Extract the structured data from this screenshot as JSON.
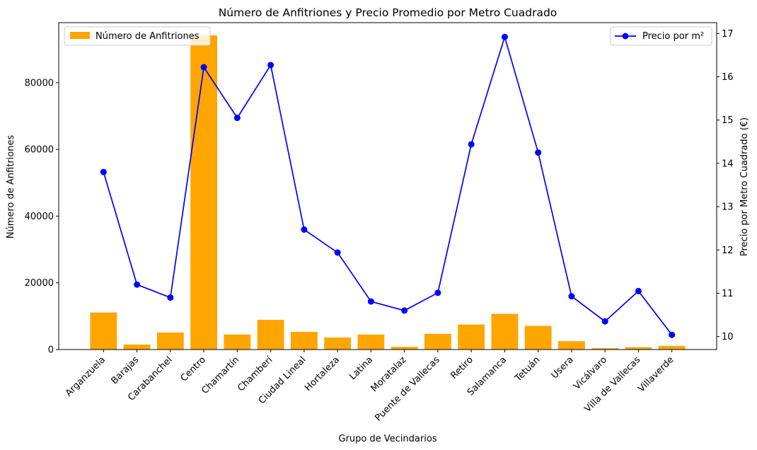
{
  "chart_data": {
    "type": "bar+line",
    "title": "Número de Anfitriones y Precio Promedio por Metro Cuadrado",
    "xlabel": "Grupo de Vecindarios",
    "ylabel_left": "Número de Anfitriones",
    "ylabel_right": "Precio por Metro Cuadrado (€)",
    "categories": [
      "Arganzuela",
      "Barajas",
      "Carabanchel",
      "Centro",
      "Chamartín",
      "Chamberí",
      "Ciudad Lineal",
      "Hortaleza",
      "Latina",
      "Moratalaz",
      "Puente de Vallecas",
      "Retiro",
      "Salamanca",
      "Tetuán",
      "Usera",
      "Vicálvaro",
      "Villa de Vallecas",
      "Villaverde"
    ],
    "series": [
      {
        "name": "Número de Anfitriones",
        "type": "bar",
        "axis": "left",
        "color": "#ffa500",
        "values": [
          11100,
          1500,
          5100,
          94200,
          4500,
          8900,
          5300,
          3600,
          4500,
          800,
          4700,
          7500,
          10700,
          7100,
          2500,
          400,
          700,
          1100
        ]
      },
      {
        "name": "Precio por m²",
        "type": "line",
        "axis": "right",
        "color": "#0000ff",
        "values": [
          13.8,
          11.2,
          10.9,
          16.22,
          15.05,
          16.27,
          12.47,
          11.94,
          10.81,
          10.6,
          11.01,
          14.44,
          16.92,
          14.25,
          10.93,
          10.35,
          11.05,
          10.04
        ]
      }
    ],
    "ylim_left": [
      0,
      98000
    ],
    "yticks_left": [
      0,
      20000,
      40000,
      60000,
      80000
    ],
    "ylim_right": [
      9.7,
      17.25
    ],
    "yticks_right": [
      10,
      11,
      12,
      13,
      14,
      15,
      16,
      17
    ],
    "legend_left": "top-left",
    "legend_right": "top-right",
    "grid": false
  }
}
